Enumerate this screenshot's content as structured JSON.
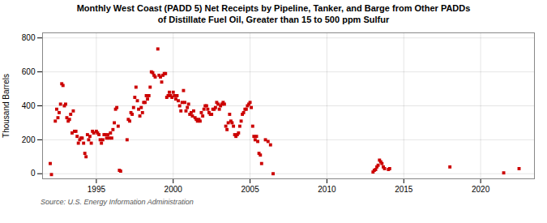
{
  "chart_data": {
    "type": "scatter",
    "title": "Monthly West Coast (PADD 5) Net Receipts by Pipeline, Tanker, and Barge from Other PADDs\nof Distillate Fuel Oil, Greater than 15 to 500 ppm Sulfur",
    "ylabel": "Thousand Barrels",
    "source": "Source: U.S. Energy Information Administration",
    "color": "#cc0000",
    "marker": "square",
    "grid": true,
    "xlim": [
      1991.5,
      2023.5
    ],
    "ylim": [
      -30,
      830
    ],
    "xticks": [
      1995,
      2000,
      2005,
      2010,
      2015,
      2020
    ],
    "yticks": [
      0,
      200,
      400,
      600,
      800
    ],
    "x": [
      1992.0,
      1992.08,
      1992.33,
      1992.42,
      1992.5,
      1992.58,
      1992.67,
      1992.75,
      1992.83,
      1992.92,
      1993.0,
      1993.08,
      1993.17,
      1993.25,
      1993.33,
      1993.42,
      1993.5,
      1993.58,
      1993.67,
      1993.75,
      1993.83,
      1993.92,
      1994.0,
      1994.08,
      1994.17,
      1994.25,
      1994.33,
      1994.42,
      1994.5,
      1994.58,
      1994.67,
      1994.75,
      1994.83,
      1995.0,
      1995.08,
      1995.17,
      1995.25,
      1995.33,
      1995.42,
      1995.5,
      1995.58,
      1995.67,
      1995.75,
      1995.83,
      1995.92,
      1996.0,
      1996.08,
      1996.17,
      1996.25,
      1996.33,
      1996.42,
      1996.5,
      1996.58,
      1997.0,
      1997.08,
      1997.17,
      1997.25,
      1997.33,
      1997.42,
      1997.5,
      1997.58,
      1997.67,
      1997.75,
      1997.83,
      1997.92,
      1998.0,
      1998.08,
      1998.17,
      1998.25,
      1998.33,
      1998.42,
      1998.5,
      1998.58,
      1998.67,
      1998.75,
      1998.83,
      1999.0,
      1999.08,
      1999.17,
      1999.25,
      1999.33,
      1999.42,
      1999.5,
      1999.58,
      1999.67,
      1999.75,
      1999.83,
      1999.92,
      2000.0,
      2000.08,
      2000.17,
      2000.25,
      2000.33,
      2000.42,
      2000.5,
      2000.58,
      2000.67,
      2000.75,
      2000.83,
      2000.92,
      2001.0,
      2001.08,
      2001.17,
      2001.25,
      2001.33,
      2001.42,
      2001.5,
      2001.58,
      2001.67,
      2001.75,
      2001.83,
      2001.92,
      2002.0,
      2002.08,
      2002.17,
      2002.25,
      2002.33,
      2002.42,
      2002.5,
      2002.58,
      2002.67,
      2002.75,
      2002.83,
      2002.92,
      2003.0,
      2003.08,
      2003.17,
      2003.25,
      2003.33,
      2003.42,
      2003.5,
      2003.58,
      2003.67,
      2003.75,
      2003.83,
      2003.92,
      2004.0,
      2004.08,
      2004.17,
      2004.25,
      2004.33,
      2004.42,
      2004.5,
      2004.58,
      2004.67,
      2004.75,
      2004.83,
      2004.92,
      2005.0,
      2005.08,
      2005.17,
      2005.25,
      2005.33,
      2005.42,
      2005.5,
      2005.58,
      2005.67,
      2005.75,
      2006.0,
      2006.17,
      2006.33,
      2006.5,
      2013.0,
      2013.08,
      2013.17,
      2013.25,
      2013.33,
      2013.42,
      2013.5,
      2013.58,
      2013.67,
      2013.75,
      2014.0,
      2014.08,
      2018.0,
      2021.5,
      2022.5
    ],
    "values": [
      60,
      -5,
      310,
      380,
      330,
      360,
      410,
      530,
      520,
      400,
      410,
      330,
      310,
      320,
      350,
      240,
      370,
      250,
      250,
      220,
      180,
      200,
      210,
      210,
      180,
      120,
      100,
      230,
      200,
      220,
      180,
      250,
      240,
      250,
      240,
      230,
      200,
      180,
      200,
      230,
      230,
      210,
      230,
      210,
      240,
      210,
      260,
      300,
      380,
      390,
      280,
      20,
      15,
      200,
      320,
      310,
      360,
      350,
      390,
      450,
      510,
      430,
      380,
      340,
      390,
      360,
      420,
      420,
      460,
      440,
      460,
      510,
      600,
      595,
      580,
      570,
      735,
      580,
      570,
      540,
      580,
      590,
      590,
      450,
      460,
      480,
      460,
      450,
      480,
      460,
      440,
      460,
      430,
      400,
      370,
      420,
      490,
      420,
      370,
      390,
      410,
      350,
      360,
      340,
      370,
      330,
      320,
      310,
      320,
      310,
      360,
      340,
      380,
      400,
      400,
      380,
      360,
      350,
      350,
      380,
      380,
      390,
      420,
      410,
      380,
      400,
      410,
      420,
      410,
      280,
      260,
      300,
      350,
      310,
      300,
      280,
      230,
      220,
      230,
      240,
      280,
      310,
      350,
      360,
      380,
      380,
      400,
      410,
      420,
      390,
      280,
      220,
      200,
      220,
      190,
      120,
      110,
      60,
      200,
      190,
      170,
      0,
      10,
      20,
      25,
      40,
      50,
      80,
      70,
      60,
      40,
      30,
      25,
      30,
      40,
      5,
      30
    ]
  }
}
